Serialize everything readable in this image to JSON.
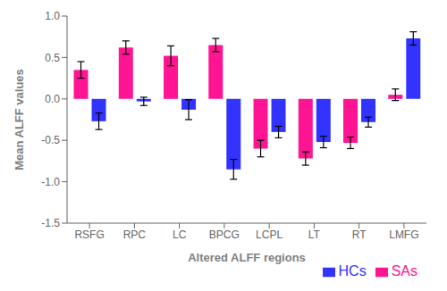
{
  "chart_data": {
    "type": "bar",
    "categories": [
      "RSFG",
      "RPC",
      "LC",
      "BPCG",
      "LCPL",
      "LT",
      "RT",
      "LMFG"
    ],
    "series": [
      {
        "name": "SAs",
        "color": "#FF1493",
        "values": [
          0.35,
          0.62,
          0.52,
          0.65,
          -0.6,
          -0.72,
          -0.53,
          0.05
        ],
        "errors": [
          0.1,
          0.08,
          0.12,
          0.08,
          0.1,
          0.08,
          0.07,
          0.07
        ]
      },
      {
        "name": "HCs",
        "color": "#3333FF",
        "values": [
          -0.27,
          -0.03,
          -0.13,
          -0.85,
          -0.4,
          -0.52,
          -0.28,
          0.73
        ],
        "errors": [
          0.1,
          0.05,
          0.12,
          0.12,
          0.07,
          0.07,
          0.06,
          0.08
        ]
      }
    ],
    "xlabel": "Altered ALFF regions",
    "ylabel": "Mean ALFF values",
    "ylim": [
      -1.5,
      1.0
    ],
    "yticks": [
      -1.5,
      {
        "value": -1,
        "label": "-1.0"
      },
      -0.5,
      {
        "value": 0,
        "label": "0.0"
      },
      0.5,
      {
        "value": 1,
        "label": "1.0"
      }
    ],
    "legend": "lower right",
    "grid": false
  }
}
